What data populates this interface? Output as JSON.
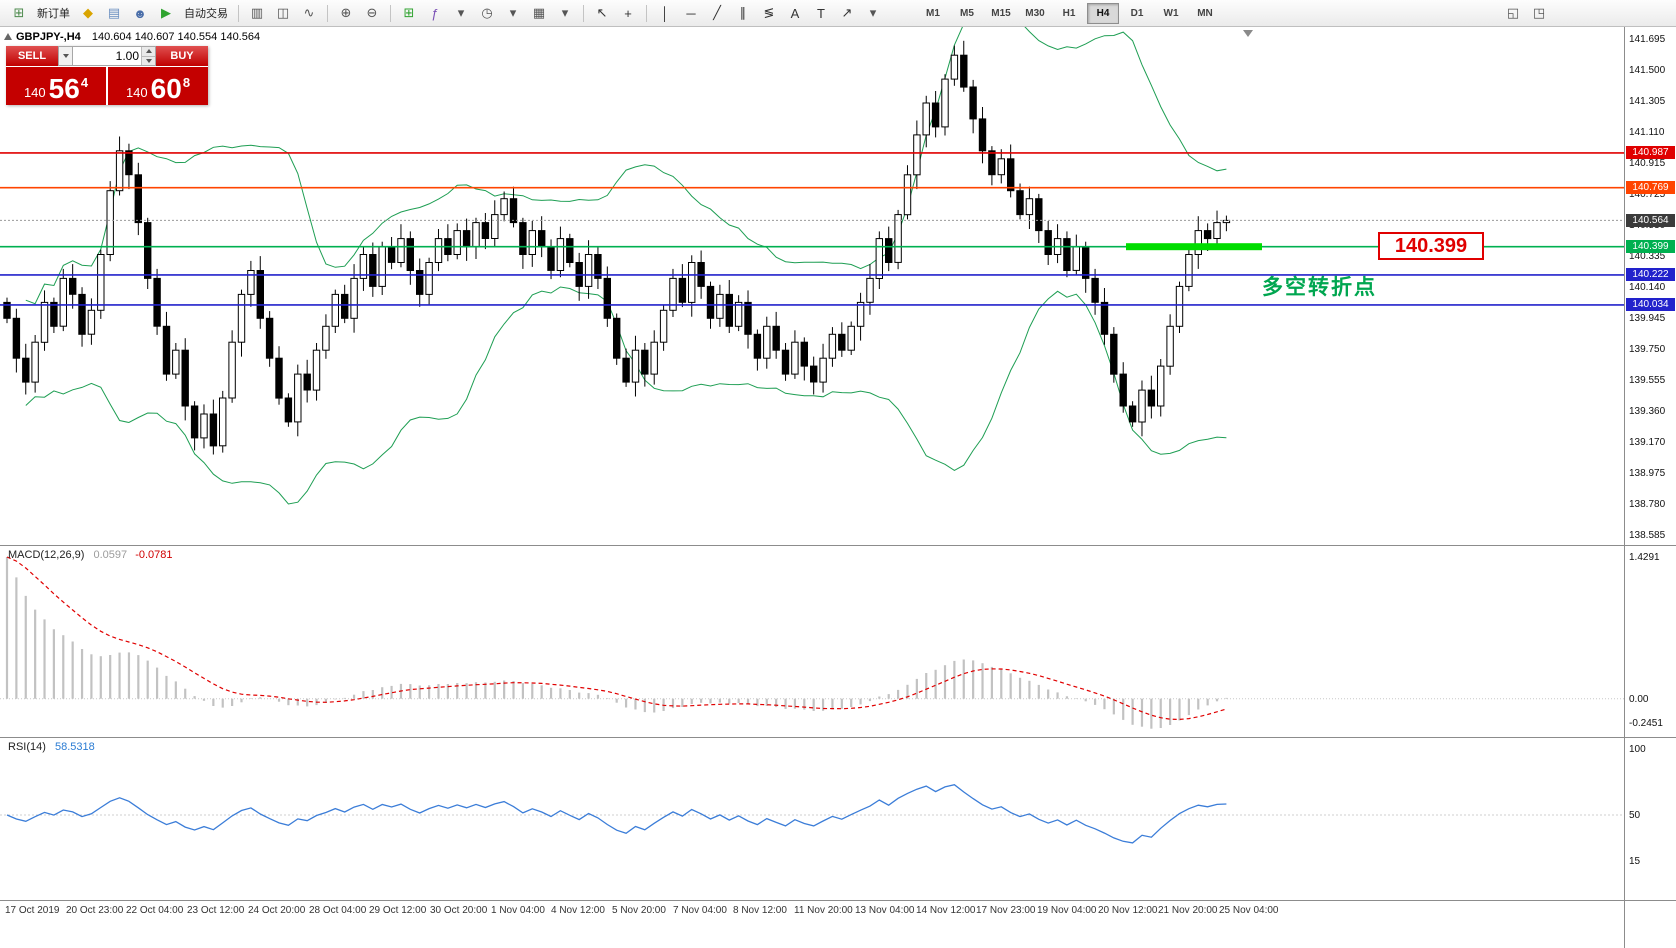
{
  "toolbar": {
    "left_icons": [
      {
        "name": "new-order-icon",
        "glyph": "⊞",
        "color": "#4c8a4c"
      },
      {
        "name": "new-order-label",
        "text": "新订单"
      },
      {
        "name": "market-watch-icon",
        "glyph": "◆",
        "color": "#d9a400"
      },
      {
        "name": "data-window-icon",
        "glyph": "▤",
        "color": "#6a8fc0"
      },
      {
        "name": "navigator-icon",
        "glyph": "☻",
        "color": "#4a6ea9"
      },
      {
        "name": "autotrading-play-icon",
        "glyph": "▶",
        "color": "#2fa32f"
      },
      {
        "name": "autotrading-label",
        "text": "自动交易"
      },
      {
        "sep": true
      },
      {
        "name": "bar-chart-icon",
        "glyph": "▥",
        "color": "#555555"
      },
      {
        "name": "candlestick-chart-icon",
        "glyph": "◫",
        "color": "#555555"
      },
      {
        "name": "line-chart-icon",
        "glyph": "∿",
        "color": "#555555"
      },
      {
        "sep": true
      },
      {
        "name": "zoom-in-icon",
        "glyph": "⊕",
        "color": "#555555"
      },
      {
        "name": "zoom-out-icon",
        "glyph": "⊖",
        "color": "#555555"
      },
      {
        "sep": true
      },
      {
        "name": "tile-windows-icon",
        "glyph": "⊞",
        "color": "#2fa32f"
      },
      {
        "name": "indicators-icon",
        "glyph": "ƒ",
        "color": "#7a4fb5"
      },
      {
        "name": "indicators-caret-icon",
        "glyph": "▾",
        "color": "#555555"
      },
      {
        "name": "periods-icon",
        "glyph": "◷",
        "color": "#555555"
      },
      {
        "name": "periods-caret-icon",
        "glyph": "▾",
        "color": "#555555"
      },
      {
        "name": "templates-icon",
        "glyph": "▦",
        "color": "#555555"
      },
      {
        "name": "templates-caret-icon",
        "glyph": "▾",
        "color": "#555555"
      },
      {
        "sep": true
      },
      {
        "name": "cursor-icon",
        "glyph": "↖",
        "color": "#333333"
      },
      {
        "name": "crosshair-icon",
        "glyph": "+",
        "color": "#333333"
      },
      {
        "sep": true
      },
      {
        "name": "vertical-line-icon",
        "glyph": "│",
        "color": "#333333"
      },
      {
        "name": "horizontal-line-icon",
        "glyph": "─",
        "color": "#333333"
      },
      {
        "name": "trendline-icon",
        "glyph": "╱",
        "color": "#333333"
      },
      {
        "name": "channel-icon",
        "glyph": "∥",
        "color": "#333333"
      },
      {
        "name": "fibonacci-icon",
        "glyph": "≶",
        "color": "#333333"
      },
      {
        "name": "text-icon",
        "glyph": "A",
        "color": "#333333"
      },
      {
        "name": "label-icon",
        "glyph": "T",
        "color": "#333333"
      },
      {
        "name": "arrows-icon",
        "glyph": "↗",
        "color": "#333333"
      },
      {
        "name": "shapes-caret-icon",
        "glyph": "▾",
        "color": "#555555"
      }
    ],
    "timeframes": [
      "M1",
      "M5",
      "M15",
      "M30",
      "H1",
      "H4",
      "D1",
      "W1",
      "MN"
    ],
    "active_timeframe": "H4",
    "right_icons": [
      {
        "name": "window-tile-icon",
        "glyph": "◱",
        "color": "#555555"
      },
      {
        "name": "window-cascade-icon",
        "glyph": "◳",
        "color": "#555555"
      }
    ]
  },
  "trade_panel": {
    "sell_label": "SELL",
    "buy_label": "BUY",
    "volume": "1.00",
    "sell_price": {
      "prefix": "140",
      "big": "56",
      "sup": "4"
    },
    "buy_price": {
      "prefix": "140",
      "big": "60",
      "sup": "8"
    }
  },
  "chart": {
    "symbol_period": "GBPJPY-,H4",
    "ohlc": "140.604 140.607 140.554 140.564",
    "current_price": {
      "value": 140.564,
      "label": "140.564",
      "color": "#3b3b3b"
    },
    "levels": [
      {
        "price": 140.987,
        "label": "140.987",
        "color": "#e00000"
      },
      {
        "price": 140.769,
        "label": "140.769",
        "color": "#ff4400"
      },
      {
        "price": 140.399,
        "label": "140.399",
        "color": "#00b050"
      },
      {
        "price": 140.222,
        "label": "140.222",
        "color": "#2222cc"
      },
      {
        "price": 140.034,
        "label": "140.034",
        "color": "#2222cc"
      }
    ],
    "highlight": {
      "price": 140.399,
      "box_label": "140.399",
      "annotation": "多空转折点",
      "segment_color": "#00dd00"
    },
    "y_ticks": [
      "141.695",
      "141.500",
      "141.305",
      "141.110",
      "140.915",
      "140.725",
      "140.530",
      "140.335",
      "140.140",
      "139.945",
      "139.750",
      "139.555",
      "139.360",
      "139.170",
      "138.975",
      "138.780",
      "138.585"
    ]
  },
  "macd": {
    "name": "MACD(12,26,9)",
    "value_main": "0.0597",
    "value_signal": "-0.0781",
    "y_ticks": [
      {
        "label": "1.4291",
        "value": 1.4291
      },
      {
        "label": "0.00",
        "value": 0
      },
      {
        "label": "-0.2451",
        "value": -0.2451
      }
    ],
    "max": 1.4291,
    "min": -0.2451
  },
  "rsi": {
    "name": "RSI(14)",
    "value": "58.5318",
    "y_ticks": [
      {
        "label": "100",
        "value": 100
      },
      {
        "label": "50",
        "value": 50
      },
      {
        "label": "15",
        "value": 15
      }
    ]
  },
  "time_axis": [
    "17 Oct 2019",
    "20 Oct 23:00",
    "22 Oct 04:00",
    "23 Oct 12:00",
    "24 Oct 20:00",
    "28 Oct 04:00",
    "29 Oct 12:00",
    "30 Oct 20:00",
    "1 Nov 04:00",
    "4 Nov 12:00",
    "5 Nov 20:00",
    "7 Nov 04:00",
    "8 Nov 12:00",
    "11 Nov 20:00",
    "13 Nov 04:00",
    "14 Nov 12:00",
    "17 Nov 23:00",
    "19 Nov 04:00",
    "20 Nov 12:00",
    "21 Nov 20:00",
    "25 Nov 04:00"
  ],
  "chart_data": {
    "type": "candlestick",
    "symbol": "GBPJPY",
    "timeframe": "H4",
    "visible_price_range": [
      138.585,
      141.695
    ],
    "indicators": [
      "Bollinger Bands",
      "MACD(12,26,9)",
      "RSI(14)"
    ],
    "closes": [
      139.95,
      139.7,
      139.55,
      139.8,
      140.05,
      139.9,
      140.2,
      140.1,
      139.85,
      140,
      140.35,
      140.75,
      141,
      140.85,
      140.55,
      140.2,
      139.9,
      139.6,
      139.75,
      139.4,
      139.2,
      139.35,
      139.15,
      139.45,
      139.8,
      140.1,
      140.25,
      139.95,
      139.7,
      139.45,
      139.3,
      139.6,
      139.5,
      139.75,
      139.9,
      140.1,
      139.95,
      140.2,
      140.35,
      140.15,
      140.4,
      140.3,
      140.45,
      140.25,
      140.1,
      140.3,
      140.45,
      140.35,
      140.5,
      140.4,
      140.55,
      140.45,
      140.6,
      140.7,
      140.55,
      140.35,
      140.5,
      140.4,
      140.25,
      140.45,
      140.3,
      140.15,
      140.35,
      140.2,
      139.95,
      139.7,
      139.55,
      139.75,
      139.6,
      139.8,
      140,
      140.2,
      140.05,
      140.3,
      140.15,
      139.95,
      140.1,
      139.9,
      140.05,
      139.85,
      139.7,
      139.9,
      139.75,
      139.6,
      139.8,
      139.65,
      139.55,
      139.7,
      139.85,
      139.75,
      139.9,
      140.05,
      140.2,
      140.45,
      140.3,
      140.6,
      140.85,
      141.1,
      141.3,
      141.15,
      141.45,
      141.6,
      141.4,
      141.2,
      141,
      140.85,
      140.95,
      140.75,
      140.6,
      140.7,
      140.5,
      140.35,
      140.45,
      140.25,
      140.4,
      140.2,
      140.05,
      139.85,
      139.6,
      139.4,
      139.3,
      139.5,
      139.4,
      139.65,
      139.9,
      140.15,
      140.35,
      140.5,
      140.45,
      140.55,
      140.564
    ]
  }
}
